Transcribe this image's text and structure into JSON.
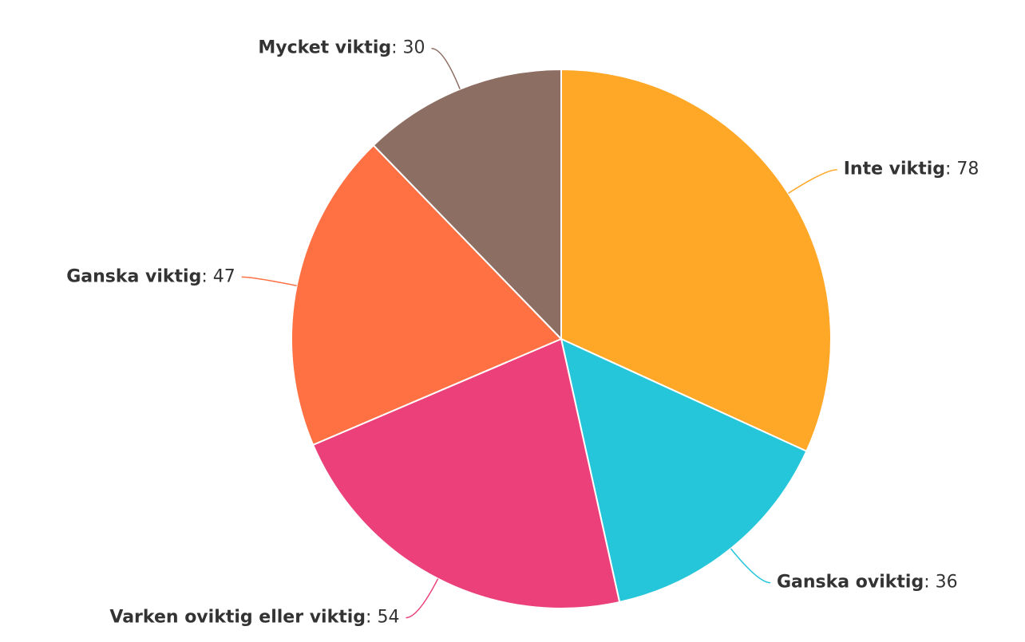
{
  "chart_data": {
    "type": "pie",
    "categories": [
      "Inte viktig",
      "Ganska oviktig",
      "Varken oviktig eller viktig",
      "Ganska viktig",
      "Mycket viktig"
    ],
    "values": [
      78,
      36,
      54,
      47,
      30
    ],
    "colors": [
      "#FFA726",
      "#26C6DA",
      "#EC407A",
      "#FF7043",
      "#8D6E63"
    ],
    "separator": ": "
  }
}
